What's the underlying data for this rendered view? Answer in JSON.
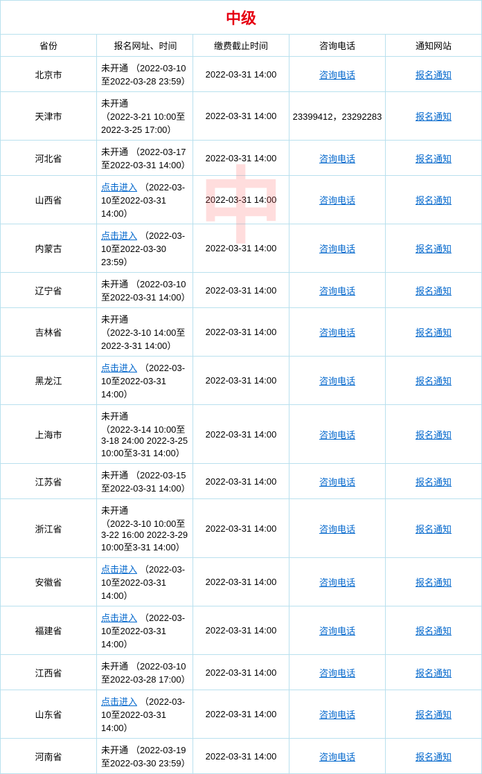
{
  "watermark": "中",
  "title": "中级",
  "headers": {
    "province": "省份",
    "reg": "报名网址、时间",
    "deadline": "缴费截止时间",
    "phone": "咨询电话",
    "notice": "通知网站"
  },
  "phone_link_label": "咨询电话",
  "notice_link_label": "报名通知",
  "status_labels": {
    "not_open": "未开通",
    "click_enter": "点击进入"
  },
  "rows": [
    {
      "prov": "北京市",
      "status": "not_open",
      "status_link": false,
      "time": "（2022-03-10至2022-03-28 23:59）",
      "deadline": "2022-03-31 14:00",
      "phone_link": true,
      "phone": ""
    },
    {
      "prov": "天津市",
      "status": "not_open",
      "status_link": false,
      "time": "（2022-3-21 10:00至2022-3-25 17:00）",
      "deadline": "2022-03-31 14:00",
      "phone_link": false,
      "phone": "23399412，23292283",
      "multiline": true
    },
    {
      "prov": "河北省",
      "status": "not_open",
      "status_link": false,
      "time": "（2022-03-17至2022-03-31 14:00）",
      "deadline": "2022-03-31 14:00",
      "phone_link": true,
      "phone": ""
    },
    {
      "prov": "山西省",
      "status": "click_enter",
      "status_link": true,
      "time": "（2022-03-10至2022-03-31 14:00）",
      "deadline": "2022-03-31 14:00",
      "phone_link": true,
      "phone": ""
    },
    {
      "prov": "内蒙古",
      "status": "click_enter",
      "status_link": true,
      "time": "（2022-03-10至2022-03-30 23:59）",
      "deadline": "2022-03-31 14:00",
      "phone_link": true,
      "phone": ""
    },
    {
      "prov": "辽宁省",
      "status": "not_open",
      "status_link": false,
      "time": "（2022-03-10至2022-03-31 14:00）",
      "deadline": "2022-03-31 14:00",
      "phone_link": true,
      "phone": ""
    },
    {
      "prov": "吉林省",
      "status": "not_open",
      "status_link": false,
      "time": "（2022-3-10 14:00至2022-3-31 14:00）",
      "deadline": "2022-03-31 14:00",
      "phone_link": true,
      "phone": "",
      "multiline": true
    },
    {
      "prov": "黑龙江",
      "status": "click_enter",
      "status_link": true,
      "time": "（2022-03-10至2022-03-31 14:00）",
      "deadline": "2022-03-31 14:00",
      "phone_link": true,
      "phone": ""
    },
    {
      "prov": "上海市",
      "status": "not_open",
      "status_link": false,
      "time": "（2022-3-14 10:00至3-18 24:00 2022-3-25 10:00至3-31 14:00）",
      "deadline": "2022-03-31 14:00",
      "phone_link": true,
      "phone": "",
      "multiline": true
    },
    {
      "prov": "江苏省",
      "status": "not_open",
      "status_link": false,
      "time": "（2022-03-15至2022-03-31 14:00）",
      "deadline": "2022-03-31 14:00",
      "phone_link": true,
      "phone": ""
    },
    {
      "prov": "浙江省",
      "status": "not_open",
      "status_link": false,
      "time": "（2022-3-10 10:00至3-22 16:00 2022-3-29 10:00至3-31 14:00）",
      "deadline": "2022-03-31 14:00",
      "phone_link": true,
      "phone": "",
      "multiline": true
    },
    {
      "prov": "安徽省",
      "status": "click_enter",
      "status_link": true,
      "time": "（2022-03-10至2022-03-31 14:00）",
      "deadline": "2022-03-31 14:00",
      "phone_link": true,
      "phone": ""
    },
    {
      "prov": "福建省",
      "status": "click_enter",
      "status_link": true,
      "time": "（2022-03-10至2022-03-31 14:00）",
      "deadline": "2022-03-31 14:00",
      "phone_link": true,
      "phone": ""
    },
    {
      "prov": "江西省",
      "status": "not_open",
      "status_link": false,
      "time": "（2022-03-10至2022-03-28 17:00）",
      "deadline": "2022-03-31 14:00",
      "phone_link": true,
      "phone": ""
    },
    {
      "prov": "山东省",
      "status": "click_enter",
      "status_link": true,
      "time": "（2022-03-10至2022-03-31 14:00）",
      "deadline": "2022-03-31 14:00",
      "phone_link": true,
      "phone": ""
    },
    {
      "prov": "河南省",
      "status": "not_open",
      "status_link": false,
      "time": "（2022-03-19至2022-03-30 23:59）",
      "deadline": "2022-03-31 14:00",
      "phone_link": true,
      "phone": ""
    }
  ]
}
